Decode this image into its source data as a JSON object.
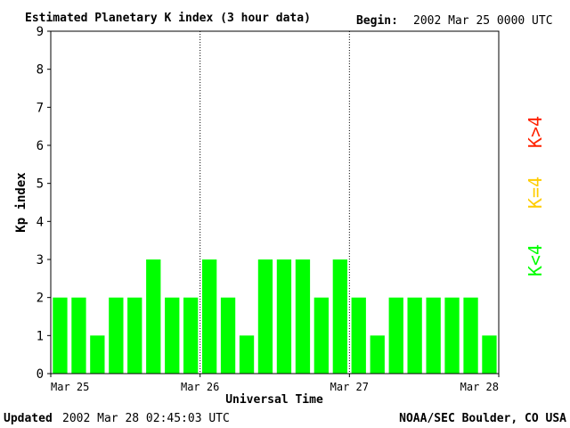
{
  "header": {
    "title": "Estimated Planetary K index (3 hour data)",
    "begin_label": "Begin:",
    "begin_value": "2002 Mar 25 0000 UTC"
  },
  "footer": {
    "updated_label": "Updated",
    "updated_value": "2002 Mar 28 02:45:03 UTC",
    "source": "NOAA/SEC Boulder, CO USA"
  },
  "legend": [
    {
      "label": "K<4",
      "color": "#00ff00"
    },
    {
      "label": "K=4",
      "color": "#ffcc00"
    },
    {
      "label": "K>4",
      "color": "#ff2200"
    }
  ],
  "chart_data": {
    "type": "bar",
    "title": "Estimated Planetary K index (3 hour data)",
    "xlabel": "Universal Time",
    "ylabel": "Kp index",
    "ylim": [
      0,
      9
    ],
    "yticks": [
      0,
      1,
      2,
      3,
      4,
      5,
      6,
      7,
      8,
      9
    ],
    "xtick_labels": [
      "Mar 25",
      "Mar 26",
      "Mar 27",
      "Mar 28"
    ],
    "grid": false,
    "day_separators": "dotted",
    "bar_color": "#00ff00",
    "values": [
      2,
      2,
      1,
      2,
      2,
      3,
      2,
      2,
      3,
      2,
      1,
      3,
      3,
      3,
      2,
      3,
      2,
      1,
      2,
      2,
      2,
      2,
      2,
      1
    ]
  }
}
